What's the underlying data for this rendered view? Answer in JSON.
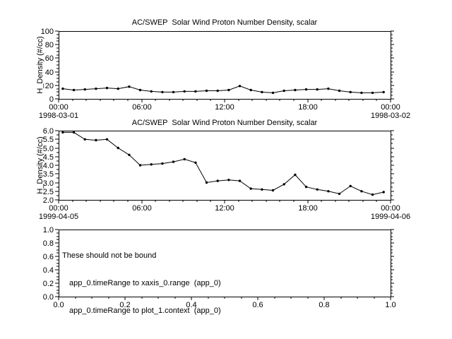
{
  "colors": {
    "foreground": "#000000",
    "background": "#ffffff"
  },
  "chart_data": [
    {
      "type": "line",
      "title": "AC/SWEP  Solar Wind Proton Number Density, scalar",
      "ylabel": "H_Density (#/cc)",
      "ylim": [
        0,
        100
      ],
      "yticks": [
        0,
        20,
        40,
        60,
        80,
        100
      ],
      "ytick_labels": [
        "0",
        "20",
        "40",
        "60",
        "80",
        "100"
      ],
      "y_minor_step": 5,
      "xlim": [
        0,
        24
      ],
      "xticks": [
        0,
        6,
        12,
        18,
        24
      ],
      "xtick_labels": [
        "00:00",
        "06:00",
        "12:00",
        "18:00",
        "00:00"
      ],
      "x_minor_step": 1,
      "x_start_label": "1998-03-01",
      "x_end_label": "1998-03-02",
      "x": [
        0.3,
        1.1,
        1.9,
        2.7,
        3.5,
        4.3,
        5.1,
        5.9,
        6.7,
        7.5,
        8.3,
        9.1,
        9.9,
        10.7,
        11.5,
        12.3,
        13.1,
        13.9,
        14.7,
        15.5,
        16.3,
        17.1,
        17.9,
        18.7,
        19.5,
        20.3,
        21.1,
        21.9,
        22.7,
        23.5
      ],
      "y": [
        15,
        13,
        14,
        15,
        16,
        15,
        18,
        13,
        11,
        10,
        10,
        11,
        11,
        12,
        12,
        13,
        19,
        13,
        10,
        9,
        12,
        13,
        14,
        14,
        15,
        12,
        10,
        9,
        9,
        10
      ]
    },
    {
      "type": "line",
      "title": "AC/SWEP  Solar Wind Proton Number Density, scalar",
      "ylabel": "H_Density (#/cc)",
      "ylim": [
        2.0,
        6.0
      ],
      "yticks": [
        2.0,
        2.5,
        3.0,
        3.5,
        4.0,
        4.5,
        5.0,
        5.5,
        6.0
      ],
      "ytick_labels": [
        "2.0",
        "2.5",
        "3.0",
        "3.5",
        "4.0",
        "4.5",
        "5.0",
        "5.5",
        "6.0"
      ],
      "y_minor_step": 0.25,
      "xlim": [
        0,
        24
      ],
      "xticks": [
        0,
        6,
        12,
        18,
        24
      ],
      "xtick_labels": [
        "00:00",
        "06:00",
        "12:00",
        "18:00",
        "00:00"
      ],
      "x_minor_step": 1,
      "x_start_label": "1999-04-05",
      "x_end_label": "1999-04-06",
      "x": [
        0.3,
        1.1,
        1.9,
        2.7,
        3.5,
        4.3,
        5.1,
        5.9,
        6.7,
        7.5,
        8.3,
        9.1,
        9.9,
        10.7,
        11.5,
        12.3,
        13.1,
        13.9,
        14.7,
        15.5,
        16.3,
        17.1,
        17.9,
        18.7,
        19.5,
        20.3,
        21.1,
        21.9,
        22.7,
        23.5
      ],
      "y": [
        5.9,
        5.9,
        5.5,
        5.45,
        5.5,
        5.0,
        4.6,
        4.0,
        4.05,
        4.1,
        4.2,
        4.35,
        4.15,
        3.0,
        3.1,
        3.15,
        3.1,
        2.65,
        2.6,
        2.55,
        2.9,
        3.45,
        2.75,
        2.6,
        2.5,
        2.35,
        2.8,
        2.5,
        2.3,
        2.45
      ]
    },
    {
      "type": "empty",
      "title": "",
      "ylabel": "",
      "ylim": [
        0.0,
        1.0
      ],
      "yticks": [
        0.0,
        0.2,
        0.4,
        0.6,
        0.8,
        1.0
      ],
      "ytick_labels": [
        "0.0",
        "0.2",
        "0.4",
        "0.6",
        "0.8",
        "1.0"
      ],
      "y_minor_step": 0.05,
      "xlim": [
        0.0,
        1.0
      ],
      "xticks": [
        0.0,
        0.2,
        0.4,
        0.6,
        0.8,
        1.0
      ],
      "xtick_labels": [
        "0.0",
        "0.2",
        "0.4",
        "0.6",
        "0.8",
        "1.0"
      ],
      "x_minor_step": 0.05,
      "x_start_label": "",
      "x_end_label": "",
      "annotation_lines": [
        "These should not be bound",
        "app_0.timeRange to xaxis_0.range  (app_0)",
        "app_0.timeRange to plot_1.context  (app_0)"
      ]
    }
  ]
}
